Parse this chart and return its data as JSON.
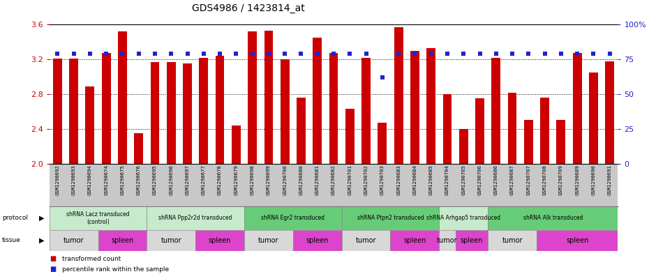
{
  "title": "GDS4986 / 1423814_at",
  "samples": [
    "GSM1290692",
    "GSM1290693",
    "GSM1290694",
    "GSM1290674",
    "GSM1290675",
    "GSM1290676",
    "GSM1290695",
    "GSM1290696",
    "GSM1290697",
    "GSM1290677",
    "GSM1290678",
    "GSM1290679",
    "GSM1290698",
    "GSM1290699",
    "GSM1290700",
    "GSM1290680",
    "GSM1290681",
    "GSM1290682",
    "GSM1290701",
    "GSM1290702",
    "GSM1290703",
    "GSM1290683",
    "GSM1290684",
    "GSM1290685",
    "GSM1290704",
    "GSM1290705",
    "GSM1290706",
    "GSM1290686",
    "GSM1290687",
    "GSM1290707",
    "GSM1290708",
    "GSM1290709",
    "GSM1290689",
    "GSM1290690",
    "GSM1290691"
  ],
  "red_values": [
    3.21,
    3.21,
    2.89,
    3.27,
    3.52,
    2.35,
    3.17,
    3.17,
    3.15,
    3.22,
    3.24,
    2.44,
    3.52,
    3.53,
    3.2,
    2.76,
    3.45,
    3.27,
    2.63,
    3.22,
    2.47,
    3.57,
    3.3,
    3.33,
    2.8,
    2.4,
    2.75,
    3.22,
    2.82,
    2.5,
    2.76,
    2.5,
    3.27,
    3.05,
    3.18
  ],
  "blue_values": [
    79,
    79,
    79,
    79,
    79,
    79,
    79,
    79,
    79,
    79,
    79,
    79,
    79,
    79,
    79,
    79,
    79,
    79,
    79,
    79,
    62,
    79,
    79,
    79,
    79,
    79,
    79,
    79,
    79,
    79,
    79,
    79,
    79,
    79,
    79
  ],
  "ylim_left": [
    2.0,
    3.6
  ],
  "ylim_right": [
    0,
    100
  ],
  "yticks_left": [
    2.0,
    2.4,
    2.8,
    3.2,
    3.6
  ],
  "yticks_right": [
    0,
    25,
    50,
    75,
    100
  ],
  "grid_lines": [
    2.4,
    2.8,
    3.2
  ],
  "protocols": [
    {
      "label": "shRNA Lacz transduced\n(control)",
      "start": 0,
      "end": 5,
      "color": "#c8eacc"
    },
    {
      "label": "shRNA Ppp2r2d transduced",
      "start": 6,
      "end": 11,
      "color": "#c8eacc"
    },
    {
      "label": "shRNA Egr2 transduced",
      "start": 12,
      "end": 17,
      "color": "#66cc77"
    },
    {
      "label": "shRNA Ptpn2 transduced",
      "start": 18,
      "end": 23,
      "color": "#66cc77"
    },
    {
      "label": "shRNA Arhgap5 transduced",
      "start": 24,
      "end": 26,
      "color": "#c8eacc"
    },
    {
      "label": "shRNA Alk transduced",
      "start": 27,
      "end": 34,
      "color": "#66cc77"
    }
  ],
  "tissues": [
    {
      "label": "tumor",
      "start": 0,
      "end": 2,
      "color": "#d8d8d8"
    },
    {
      "label": "spleen",
      "start": 3,
      "end": 5,
      "color": "#dd44cc"
    },
    {
      "label": "tumor",
      "start": 6,
      "end": 8,
      "color": "#d8d8d8"
    },
    {
      "label": "spleen",
      "start": 9,
      "end": 11,
      "color": "#dd44cc"
    },
    {
      "label": "tumor",
      "start": 12,
      "end": 14,
      "color": "#d8d8d8"
    },
    {
      "label": "spleen",
      "start": 15,
      "end": 17,
      "color": "#dd44cc"
    },
    {
      "label": "tumor",
      "start": 18,
      "end": 20,
      "color": "#d8d8d8"
    },
    {
      "label": "spleen",
      "start": 21,
      "end": 23,
      "color": "#dd44cc"
    },
    {
      "label": "tumor",
      "start": 24,
      "end": 24,
      "color": "#d8d8d8"
    },
    {
      "label": "spleen",
      "start": 25,
      "end": 26,
      "color": "#dd44cc"
    },
    {
      "label": "tumor",
      "start": 27,
      "end": 29,
      "color": "#d8d8d8"
    },
    {
      "label": "spleen",
      "start": 30,
      "end": 34,
      "color": "#dd44cc"
    }
  ],
  "bar_color": "#cc0000",
  "dot_color": "#2222cc",
  "background_color": "#ffffff",
  "left_axis_color": "#cc0000",
  "right_axis_color": "#2222cc",
  "samplename_bg": "#c8c8c8"
}
